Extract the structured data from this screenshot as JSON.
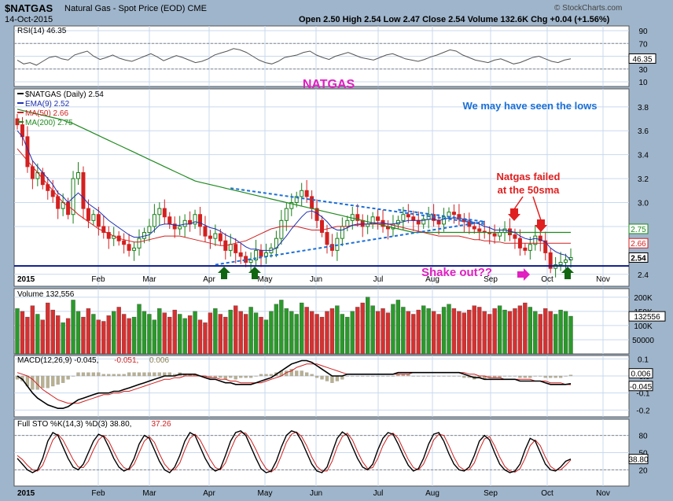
{
  "header": {
    "symbol": "$NATGAS",
    "description": "Natural Gas - Spot Price (EOD)  CME",
    "date": "14-Oct-2015",
    "ohlc": "Open 2.50  High 2.54  Low 2.47  Close 2.54  Volume 132.6K  Chg +0.04 (+1.56%)",
    "copyright": "© StockCharts.com"
  },
  "colors": {
    "up": "#1a7f1a",
    "down": "#d42020",
    "ema9": "#1c2fb0",
    "ma50": "#d02020",
    "ma200": "#1f8a1f",
    "trend": "#1b6fd6",
    "support": "#0a1a8a",
    "annot_magenta": "#e020c0",
    "annot_blue": "#1b6fd6",
    "annot_red": "#e02020",
    "arrow_green": "#116611",
    "arrow_red": "#e02020"
  },
  "chart_data": [
    {
      "type": "line",
      "panel": "rsi",
      "legend": "RSI(14) 46.35",
      "ylim": [
        10,
        90
      ],
      "y_ticks": [
        "90",
        "70",
        "50",
        "30",
        "10"
      ],
      "last_value_label": "46.35",
      "series": [
        {
          "values": [
            44,
            38,
            40,
            36,
            42,
            48,
            50,
            46,
            44,
            52,
            55,
            58,
            50,
            45,
            48,
            52,
            47,
            44,
            42,
            46,
            50,
            54,
            49,
            43,
            47,
            51,
            48,
            44,
            40,
            42,
            46,
            52,
            55,
            58,
            62,
            60,
            56,
            50,
            44,
            40,
            38,
            42,
            48,
            50,
            52,
            56,
            58,
            52,
            48,
            45,
            50,
            53,
            56,
            52,
            48,
            46,
            44,
            48,
            52,
            54,
            50,
            46,
            44,
            42,
            45,
            49,
            52,
            56,
            60,
            58,
            52,
            48,
            44,
            42,
            40,
            44,
            46,
            42,
            38,
            40,
            44,
            48,
            50,
            46,
            42,
            40,
            44,
            46
          ]
        }
      ]
    },
    {
      "type": "candlestick",
      "panel": "price",
      "title": "NATGAS",
      "legend": [
        "$NATGAS (Daily) 2.54",
        "EMA(9) 2.52",
        "MA(50) 2.66",
        "MA(200) 2.75"
      ],
      "ylim": [
        2.3,
        3.95
      ],
      "y_ticks": [
        "3.8",
        "3.6",
        "3.4",
        "3.2",
        "3.0",
        "2.8",
        "2.4"
      ],
      "last_value_labels": [
        "2.75",
        "2.66",
        "2.54"
      ],
      "closes": [
        3.65,
        3.55,
        3.3,
        3.2,
        3.25,
        3.15,
        3.1,
        3.05,
        2.95,
        3.0,
        2.9,
        3.2,
        3.25,
        2.95,
        2.85,
        2.9,
        2.8,
        2.75,
        2.7,
        2.72,
        2.68,
        2.65,
        2.6,
        2.62,
        2.7,
        2.75,
        2.8,
        2.9,
        2.95,
        2.88,
        2.82,
        2.78,
        2.8,
        2.85,
        2.82,
        2.9,
        2.8,
        2.72,
        2.7,
        2.74,
        2.68,
        2.6,
        2.65,
        2.58,
        2.55,
        2.5,
        2.52,
        2.6,
        2.55,
        2.58,
        2.62,
        2.7,
        2.85,
        2.95,
        3.0,
        3.05,
        3.1,
        3.05,
        2.95,
        2.85,
        2.75,
        2.65,
        2.6,
        2.7,
        2.8,
        2.85,
        2.9,
        2.85,
        2.8,
        2.82,
        2.88,
        2.85,
        2.8,
        2.78,
        2.82,
        2.85,
        2.9,
        2.88,
        2.85,
        2.82,
        2.86,
        2.9,
        2.85,
        2.82,
        2.88,
        2.92,
        2.9,
        2.86,
        2.84,
        2.8,
        2.78,
        2.76,
        2.75,
        2.74,
        2.72,
        2.75,
        2.78,
        2.73,
        2.7,
        2.62,
        2.6,
        2.65,
        2.72,
        2.68,
        2.58,
        2.45,
        2.48,
        2.5,
        2.52,
        2.54
      ],
      "ema9": [
        3.6,
        3.55,
        3.45,
        3.35,
        3.3,
        3.25,
        3.2,
        3.15,
        3.08,
        3.05,
        3.0,
        3.04,
        3.08,
        3.04,
        2.99,
        2.96,
        2.93,
        2.89,
        2.85,
        2.82,
        2.79,
        2.76,
        2.73,
        2.71,
        2.71,
        2.72,
        2.73,
        2.77,
        2.81,
        2.82,
        2.82,
        2.81,
        2.81,
        2.82,
        2.82,
        2.84,
        2.83,
        2.81,
        2.79,
        2.78,
        2.76,
        2.73,
        2.71,
        2.69,
        2.66,
        2.63,
        2.61,
        2.61,
        2.6,
        2.6,
        2.6,
        2.62,
        2.67,
        2.72,
        2.78,
        2.83,
        2.88,
        2.92,
        2.93,
        2.91,
        2.88,
        2.84,
        2.79,
        2.77,
        2.77,
        2.79,
        2.81,
        2.82,
        2.82,
        2.82,
        2.83,
        2.83,
        2.83,
        2.82,
        2.82,
        2.83,
        2.84,
        2.85,
        2.85,
        2.85,
        2.85,
        2.86,
        2.86,
        2.85,
        2.86,
        2.87,
        2.87,
        2.87,
        2.86,
        2.85,
        2.83,
        2.82,
        2.8,
        2.79,
        2.77,
        2.77,
        2.77,
        2.76,
        2.75,
        2.72,
        2.7,
        2.69,
        2.7,
        2.69,
        2.67,
        2.62,
        2.59,
        2.57,
        2.56,
        2.52
      ],
      "ma50": [
        3.45,
        3.4,
        3.35,
        3.3,
        3.25,
        3.2,
        3.15,
        3.1,
        3.05,
        3.0,
        2.97,
        2.94,
        2.9,
        2.87,
        2.84,
        2.81,
        2.78,
        2.76,
        2.74,
        2.72,
        2.7,
        2.69,
        2.68,
        2.67,
        2.67,
        2.68,
        2.69,
        2.7,
        2.71,
        2.72,
        2.72,
        2.72,
        2.72,
        2.71,
        2.7,
        2.69,
        2.68,
        2.67,
        2.66,
        2.65,
        2.64,
        2.64,
        2.65,
        2.66,
        2.67,
        2.68,
        2.7,
        2.72,
        2.74,
        2.76,
        2.78,
        2.79,
        2.8,
        2.8,
        2.8,
        2.8,
        2.79,
        2.78,
        2.77,
        2.77,
        2.77,
        2.78,
        2.79,
        2.8,
        2.8,
        2.8,
        2.81,
        2.81,
        2.82,
        2.82,
        2.82,
        2.82,
        2.82,
        2.82,
        2.81,
        2.8,
        2.79,
        2.78,
        2.77,
        2.76,
        2.75,
        2.74,
        2.73,
        2.72,
        2.72,
        2.72,
        2.72,
        2.72,
        2.71,
        2.7,
        2.69,
        2.69,
        2.68,
        2.68,
        2.67,
        2.67,
        2.66,
        2.66,
        2.66,
        2.66,
        2.66,
        2.66,
        2.66,
        2.66,
        2.66,
        2.66,
        2.66,
        2.66,
        2.66,
        2.66
      ],
      "ma200": [
        3.78,
        3.77,
        3.76,
        3.75,
        3.74,
        3.73,
        3.72,
        3.71,
        3.7,
        3.69,
        3.67,
        3.66,
        3.64,
        3.62,
        3.6,
        3.58,
        3.56,
        3.54,
        3.52,
        3.5,
        3.48,
        3.46,
        3.44,
        3.42,
        3.4,
        3.38,
        3.36,
        3.34,
        3.32,
        3.3,
        3.28,
        3.26,
        3.24,
        3.22,
        3.2,
        3.18,
        3.17,
        3.16,
        3.15,
        3.14,
        3.13,
        3.12,
        3.11,
        3.1,
        3.09,
        3.08,
        3.07,
        3.06,
        3.05,
        3.04,
        3.03,
        3.02,
        3.01,
        3.0,
        2.99,
        2.98,
        2.97,
        2.96,
        2.95,
        2.94,
        2.93,
        2.92,
        2.91,
        2.9,
        2.89,
        2.88,
        2.87,
        2.86,
        2.85,
        2.84,
        2.83,
        2.82,
        2.81,
        2.8,
        2.79,
        2.78,
        2.77,
        2.76,
        2.75,
        2.75,
        2.75,
        2.75,
        2.75,
        2.75,
        2.75,
        2.75,
        2.75,
        2.75,
        2.75,
        2.75,
        2.75,
        2.75,
        2.75,
        2.75,
        2.75,
        2.75,
        2.75,
        2.75,
        2.75,
        2.75,
        2.75,
        2.75,
        2.75,
        2.75,
        2.75,
        2.75,
        2.75,
        2.75,
        2.75,
        2.75
      ],
      "annotations": {
        "lows_text": "We may have seen the lows",
        "failed_text_1": "Natgas failed",
        "failed_text_2": "at the 50sma",
        "shakeout_text": "Shake out??"
      }
    },
    {
      "type": "bar",
      "panel": "volume",
      "legend": "Volume 132,556",
      "y_ticks": [
        "200K",
        "150K",
        "100K",
        "50000"
      ],
      "last_value_label": "132556",
      "values": [
        160,
        150,
        130,
        170,
        140,
        120,
        180,
        155,
        135,
        110,
        125,
        190,
        150,
        130,
        160,
        140,
        120,
        115,
        135,
        150,
        165,
        140,
        125,
        130,
        175,
        150,
        140,
        120,
        160,
        145,
        130,
        155,
        140,
        125,
        135,
        150,
        120,
        110,
        145,
        160,
        140,
        130,
        155,
        170,
        150,
        140,
        165,
        145,
        130,
        120,
        150,
        175,
        190,
        160,
        150,
        140,
        180,
        165,
        150,
        140,
        130,
        150,
        160,
        170,
        140,
        130,
        150,
        165,
        180,
        200,
        170,
        150,
        160,
        145,
        175,
        190,
        165,
        150,
        140,
        155,
        170,
        160,
        150,
        140,
        165,
        175,
        160,
        150,
        145,
        155,
        170,
        165,
        150,
        140,
        160,
        170,
        155,
        150,
        160,
        170,
        180,
        165,
        150,
        140,
        160,
        150,
        140,
        155,
        150,
        133
      ]
    },
    {
      "type": "line",
      "panel": "macd",
      "legend": [
        "MACD(12,26,9) -0.045, ",
        "-0.051, ",
        "0.006"
      ],
      "y_ticks": [
        "0.1",
        "-0.0",
        "-0.1",
        "-0.2"
      ],
      "last_value_labels": [
        "0.006",
        "-0.045"
      ],
      "macd": [
        0.0,
        -0.02,
        -0.06,
        -0.1,
        -0.13,
        -0.15,
        -0.17,
        -0.18,
        -0.19,
        -0.19,
        -0.18,
        -0.16,
        -0.14,
        -0.13,
        -0.12,
        -0.11,
        -0.1,
        -0.1,
        -0.1,
        -0.09,
        -0.09,
        -0.08,
        -0.07,
        -0.06,
        -0.05,
        -0.04,
        -0.03,
        -0.02,
        -0.01,
        0.0,
        0.0,
        0.0,
        0.01,
        0.01,
        0.01,
        0.01,
        0.0,
        -0.01,
        -0.02,
        -0.02,
        -0.03,
        -0.04,
        -0.04,
        -0.05,
        -0.05,
        -0.05,
        -0.05,
        -0.04,
        -0.03,
        -0.02,
        -0.01,
        0.01,
        0.03,
        0.05,
        0.07,
        0.08,
        0.09,
        0.09,
        0.08,
        0.06,
        0.04,
        0.02,
        0.0,
        0.0,
        0.0,
        0.01,
        0.01,
        0.01,
        0.01,
        0.01,
        0.01,
        0.01,
        0.01,
        0.01,
        0.01,
        0.02,
        0.02,
        0.02,
        0.02,
        0.02,
        0.02,
        0.02,
        0.02,
        0.02,
        0.02,
        0.02,
        0.02,
        0.02,
        0.01,
        0.0,
        -0.01,
        -0.01,
        -0.02,
        -0.02,
        -0.02,
        -0.02,
        -0.02,
        -0.02,
        -0.02,
        -0.03,
        -0.03,
        -0.03,
        -0.03,
        -0.03,
        -0.04,
        -0.05,
        -0.05,
        -0.05,
        -0.05,
        -0.045
      ],
      "signal": [
        0.02,
        0.01,
        0.0,
        -0.02,
        -0.05,
        -0.08,
        -0.1,
        -0.12,
        -0.14,
        -0.15,
        -0.16,
        -0.16,
        -0.16,
        -0.15,
        -0.14,
        -0.13,
        -0.12,
        -0.11,
        -0.11,
        -0.1,
        -0.1,
        -0.09,
        -0.09,
        -0.08,
        -0.07,
        -0.06,
        -0.05,
        -0.04,
        -0.03,
        -0.02,
        -0.02,
        -0.01,
        -0.01,
        0.0,
        0.0,
        0.0,
        0.0,
        0.0,
        -0.01,
        -0.01,
        -0.02,
        -0.02,
        -0.03,
        -0.03,
        -0.04,
        -0.04,
        -0.04,
        -0.04,
        -0.04,
        -0.03,
        -0.02,
        -0.01,
        0.0,
        0.02,
        0.03,
        0.05,
        0.06,
        0.07,
        0.07,
        0.07,
        0.06,
        0.05,
        0.04,
        0.03,
        0.02,
        0.01,
        0.01,
        0.01,
        0.01,
        0.01,
        0.01,
        0.01,
        0.01,
        0.01,
        0.01,
        0.01,
        0.01,
        0.01,
        0.02,
        0.02,
        0.02,
        0.02,
        0.02,
        0.02,
        0.02,
        0.02,
        0.02,
        0.02,
        0.02,
        0.01,
        0.01,
        0.0,
        0.0,
        -0.01,
        -0.01,
        -0.01,
        -0.02,
        -0.02,
        -0.02,
        -0.02,
        -0.02,
        -0.02,
        -0.03,
        -0.03,
        -0.03,
        -0.04,
        -0.04,
        -0.04,
        -0.05,
        -0.051
      ]
    },
    {
      "type": "line",
      "panel": "stochastic",
      "legend": [
        "Full STO %K(14,3) %D(3) 38.80, ",
        "37.26"
      ],
      "y_ticks": [
        "80",
        "50",
        "20"
      ],
      "last_value_label": "38.80",
      "k": [
        40,
        30,
        20,
        15,
        20,
        40,
        70,
        85,
        80,
        60,
        40,
        25,
        20,
        30,
        50,
        70,
        82,
        78,
        60,
        40,
        25,
        18,
        22,
        40,
        65,
        80,
        75,
        55,
        35,
        20,
        15,
        25,
        45,
        70,
        85,
        80,
        60,
        40,
        25,
        18,
        22,
        45,
        70,
        85,
        88,
        80,
        60,
        40,
        22,
        15,
        18,
        35,
        60,
        80,
        88,
        85,
        70,
        50,
        30,
        18,
        15,
        25,
        50,
        75,
        86,
        80,
        60,
        40,
        25,
        20,
        30,
        55,
        75,
        85,
        82,
        65,
        45,
        28,
        18,
        22,
        40,
        65,
        82,
        85,
        70,
        48,
        30,
        20,
        18,
        25,
        45,
        70,
        80,
        72,
        50,
        30,
        20,
        15,
        18,
        30,
        55,
        75,
        70,
        50,
        30,
        20,
        18,
        25,
        35,
        38.8
      ],
      "d": [
        45,
        38,
        28,
        20,
        18,
        28,
        50,
        72,
        82,
        72,
        55,
        38,
        25,
        24,
        35,
        55,
        72,
        80,
        70,
        52,
        35,
        24,
        20,
        30,
        50,
        70,
        78,
        68,
        48,
        30,
        20,
        20,
        32,
        55,
        75,
        82,
        72,
        55,
        38,
        24,
        20,
        32,
        55,
        75,
        85,
        84,
        72,
        55,
        36,
        22,
        16,
        24,
        45,
        68,
        82,
        86,
        78,
        62,
        42,
        26,
        18,
        18,
        35,
        60,
        78,
        84,
        72,
        52,
        34,
        22,
        24,
        40,
        62,
        78,
        84,
        75,
        56,
        38,
        24,
        20,
        30,
        50,
        72,
        82,
        80,
        62,
        42,
        26,
        20,
        20,
        32,
        55,
        74,
        78,
        62,
        42,
        26,
        18,
        16,
        22,
        40,
        62,
        72,
        62,
        42,
        26,
        20,
        20,
        28,
        37.26
      ]
    }
  ],
  "x_axis": {
    "month_labels": [
      "2015",
      "Feb",
      "Mar",
      "Apr",
      "May",
      "Jun",
      "Jul",
      "Aug",
      "Sep",
      "Oct",
      "Nov"
    ]
  }
}
